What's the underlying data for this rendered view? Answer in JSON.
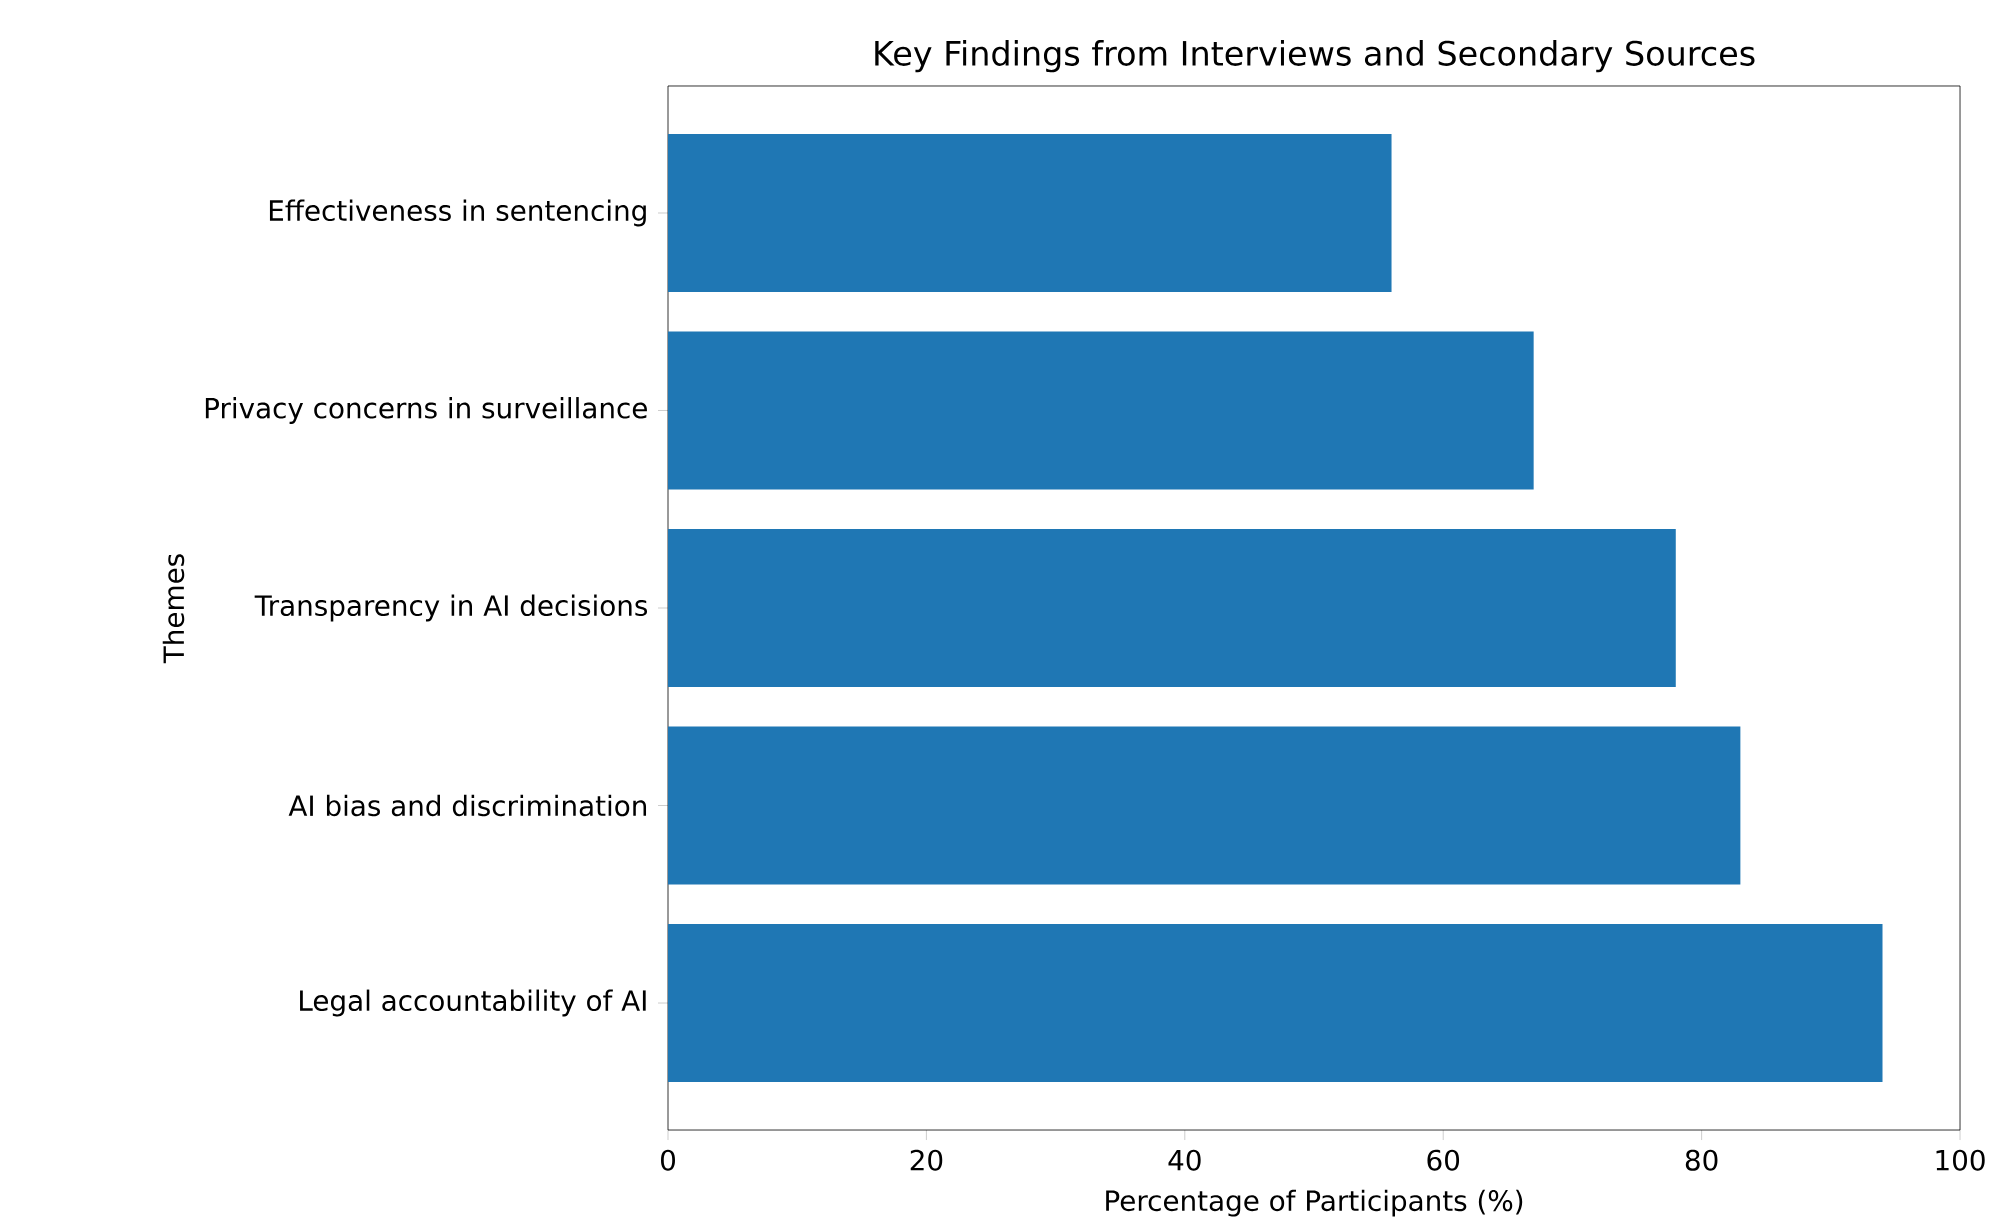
{
  "chart_data": {
    "type": "bar",
    "orientation": "horizontal",
    "title": "Key Findings from Interviews and Secondary Sources",
    "xlabel": "Percentage of Participants (%)",
    "ylabel": "Themes",
    "categories": [
      "Effectiveness in sentencing",
      "Privacy concerns in surveillance",
      "Transparency in AI decisions",
      "AI bias and discrimination",
      "Legal accountability of AI"
    ],
    "values": [
      56,
      67,
      78,
      83,
      94
    ],
    "color": "#1f77b4",
    "xlim": [
      0,
      100
    ],
    "xticks": [
      0,
      20,
      40,
      60,
      80,
      100
    ],
    "grid": false
  }
}
